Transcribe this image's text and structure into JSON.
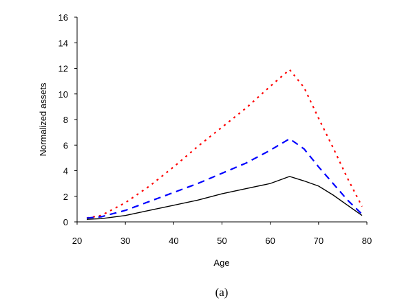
{
  "chart_data": {
    "type": "line",
    "title": "",
    "xlabel": "Age",
    "ylabel": "Normalized assets",
    "caption": "(a)",
    "xlim": [
      20,
      80
    ],
    "ylim": [
      0,
      16
    ],
    "xticks": [
      "20",
      "30",
      "40",
      "50",
      "60",
      "70",
      "80"
    ],
    "yticks": [
      "0",
      "2",
      "4",
      "6",
      "8",
      "10",
      "12",
      "14",
      "16"
    ],
    "grid": false,
    "legend": "none",
    "x": [
      22,
      25,
      30,
      35,
      40,
      45,
      50,
      55,
      60,
      64,
      67,
      70,
      73,
      76,
      79
    ],
    "series": [
      {
        "name": "red dotted",
        "color": "#ff0000",
        "dash": "3,6",
        "values": [
          0.3,
          0.5,
          1.5,
          2.8,
          4.3,
          5.9,
          7.4,
          8.9,
          10.6,
          11.9,
          10.5,
          8.1,
          5.8,
          3.4,
          1.2
        ]
      },
      {
        "name": "blue dashed",
        "color": "#0000ff",
        "dash": "10,7",
        "values": [
          0.3,
          0.4,
          0.9,
          1.6,
          2.3,
          3.0,
          3.8,
          4.6,
          5.6,
          6.5,
          5.7,
          4.3,
          3.0,
          1.7,
          0.6
        ]
      },
      {
        "name": "black solid",
        "color": "#000000",
        "dash": "",
        "values": [
          0.2,
          0.25,
          0.5,
          0.9,
          1.3,
          1.7,
          2.2,
          2.6,
          3.0,
          3.55,
          3.2,
          2.8,
          2.1,
          1.3,
          0.5
        ]
      }
    ]
  }
}
